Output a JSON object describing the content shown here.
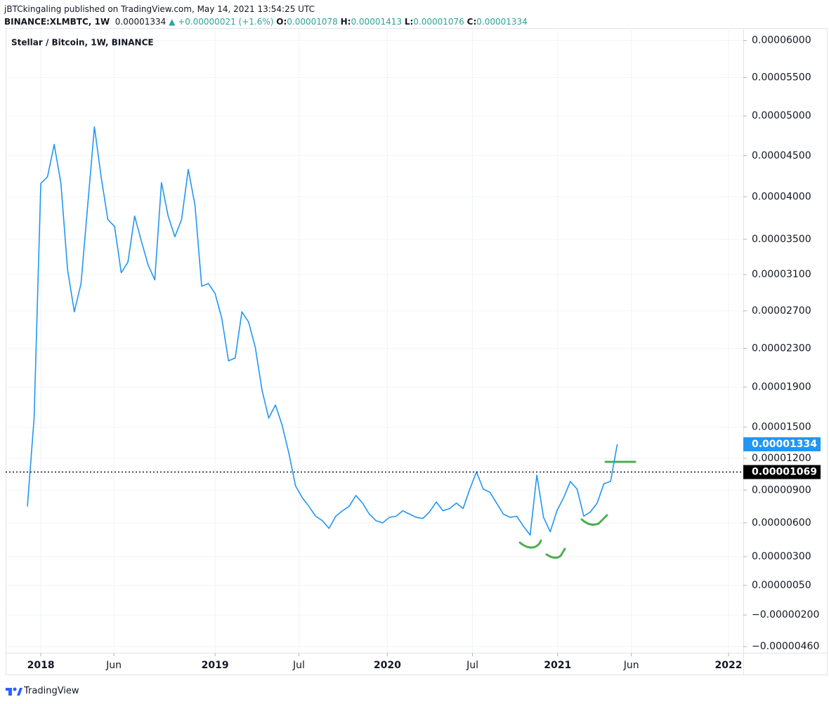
{
  "header": {
    "author": "jBTCkingaling",
    "published": "published on TradingView.com, May 14, 2021 13:54:25 UTC",
    "symbol": "BINANCE:XLMBTC, 1W",
    "last": "0.00001334",
    "change": "▲ +0.00000021 (+1.6%)",
    "ohlc": [
      {
        "label": "O:",
        "value": "0.00001078"
      },
      {
        "label": "H:",
        "value": "0.00001413"
      },
      {
        "label": "L:",
        "value": "0.00001076"
      },
      {
        "label": "C:",
        "value": "0.00001334"
      }
    ]
  },
  "footer": {
    "brand": "TradingView"
  },
  "chart_data": {
    "type": "line",
    "title": "Stellar / Bitcoin, 1W, BINANCE",
    "color": "#2196f3",
    "grid": true,
    "values": [
      7.5e-06,
      1.59e-05,
      4.16e-05,
      4.24e-05,
      4.64e-05,
      4.16e-05,
      3.15e-05,
      2.69e-05,
      3e-05,
      3.9e-05,
      4.86e-05,
      4.24e-05,
      3.73e-05,
      3.65e-05,
      3.12e-05,
      3.24e-05,
      3.77e-05,
      3.48e-05,
      3.21e-05,
      3.04e-05,
      4.17e-05,
      3.77e-05,
      3.53e-05,
      3.73e-05,
      4.33e-05,
      3.9e-05,
      2.97e-05,
      3e-05,
      2.89e-05,
      2.62e-05,
      2.17e-05,
      2.2e-05,
      2.69e-05,
      2.58e-05,
      2.31e-05,
      1.87e-05,
      1.59e-05,
      1.72e-05,
      1.52e-05,
      1.25e-05,
      9.4e-06,
      8.3e-06,
      7.5e-06,
      6.6e-06,
      6.2e-06,
      5.5e-06,
      6.6e-06,
      7.1e-06,
      7.5e-06,
      8.5e-06,
      7.8e-06,
      6.8e-06,
      6.2e-06,
      6e-06,
      6.5e-06,
      6.6e-06,
      7.1e-06,
      6.8e-06,
      6.5e-06,
      6.4e-06,
      7e-06,
      7.9e-06,
      7.1e-06,
      7.3e-06,
      7.8e-06,
      7.3e-06,
      9.1e-06,
      1.07e-05,
      9.1e-06,
      8.8e-06,
      7.8e-06,
      6.8e-06,
      6.5e-06,
      6.6e-06,
      5.7e-06,
      4.9e-06,
      1.04e-05,
      6.5e-06,
      5.2e-06,
      7.1e-06,
      8.3e-06,
      9.8e-06,
      9.1e-06,
      6.6e-06,
      7e-06,
      7.8e-06,
      9.6e-06,
      9.8e-06,
      1.334e-05
    ],
    "xlim": [
      -3.25,
      106.8
    ],
    "xticks": [
      {
        "value": 2.0,
        "label": "2018"
      },
      {
        "value": 12.9,
        "label": "Jun"
      },
      {
        "value": 28.0,
        "label": "2019"
      },
      {
        "value": 40.5,
        "label": "Jul"
      },
      {
        "value": 53.7,
        "label": "2020"
      },
      {
        "value": 66.4,
        "label": "Jul"
      },
      {
        "value": 79.1,
        "label": "2021"
      },
      {
        "value": 90.1,
        "label": "Jun"
      },
      {
        "value": 104.6,
        "label": "2022"
      }
    ],
    "ylim": [
      -5.1e-06,
      6.17e-05
    ],
    "yticks": [
      {
        "value": 6e-05,
        "label": "0.00006000"
      },
      {
        "value": 5.5e-05,
        "label": "0.00005500"
      },
      {
        "value": 5e-05,
        "label": "0.00005000"
      },
      {
        "value": 4.5e-05,
        "label": "0.00004500"
      },
      {
        "value": 4e-05,
        "label": "0.00004000"
      },
      {
        "value": 3.5e-05,
        "label": "0.00003500"
      },
      {
        "value": 3.1e-05,
        "label": "0.00003100"
      },
      {
        "value": 2.7e-05,
        "label": "0.00002700"
      },
      {
        "value": 2.3e-05,
        "label": "0.00002300"
      },
      {
        "value": 1.9e-05,
        "label": "0.00001900"
      },
      {
        "value": 1.5e-05,
        "label": "0.00001500"
      },
      {
        "value": 1.2e-05,
        "label": "0.00001200"
      },
      {
        "value": 9e-06,
        "label": "0.00000900"
      },
      {
        "value": 6e-06,
        "label": "0.00000600"
      },
      {
        "value": 3e-06,
        "label": "0.00000300"
      },
      {
        "value": 5e-07,
        "label": "0.00000050"
      },
      {
        "value": -2e-06,
        "label": "−0.00000200"
      },
      {
        "value": -4.6e-06,
        "label": "−0.00000460"
      }
    ],
    "price_line": {
      "value": 1.069e-05,
      "label": "0.00001069"
    },
    "last_price": {
      "value": 1.334e-05,
      "label": "0.00001334"
    }
  }
}
